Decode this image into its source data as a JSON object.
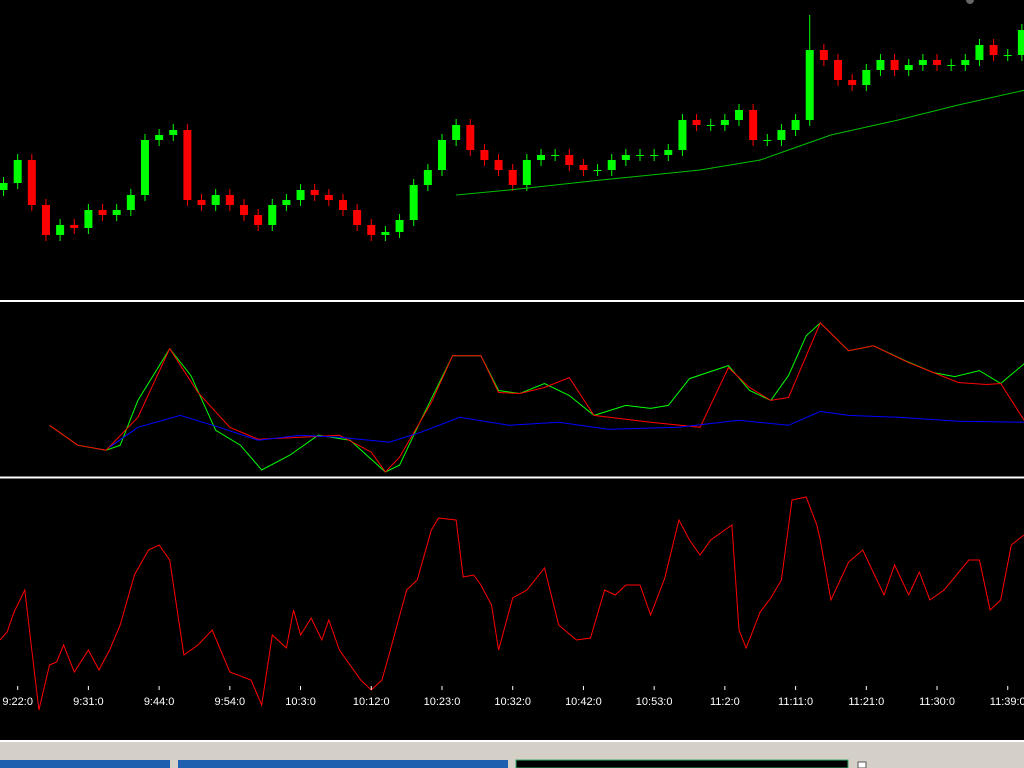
{
  "chart_data": [
    {
      "type": "candlestick",
      "xlim": [
        -0.5,
        144.3
      ],
      "ylim": [
        0,
        300
      ],
      "up_color": "#00ff00",
      "down_color": "#ff0000",
      "x": [
        0,
        2,
        4,
        6,
        8,
        10,
        12,
        14,
        16,
        18,
        20,
        22,
        24,
        26,
        28,
        30,
        32,
        34,
        36,
        38,
        40,
        42,
        44,
        46,
        48,
        50,
        52,
        54,
        56,
        58,
        60,
        62,
        64,
        66,
        68,
        70,
        72,
        74,
        76,
        78,
        80,
        82,
        84,
        86,
        88,
        90,
        92,
        94,
        96,
        98,
        100,
        102,
        104,
        106,
        108,
        110,
        112,
        114,
        116,
        118,
        120,
        122,
        124,
        126,
        128,
        130,
        132,
        134,
        136,
        138,
        140,
        142,
        144
      ],
      "open": [
        110,
        117,
        140,
        95,
        65,
        75,
        72,
        90,
        85,
        90,
        105,
        160,
        165,
        170,
        100,
        95,
        105,
        95,
        85,
        75,
        95,
        100,
        110,
        105,
        100,
        90,
        75,
        65,
        68,
        80,
        115,
        130,
        160,
        175,
        150,
        140,
        130,
        115,
        140,
        145,
        145,
        135,
        130,
        130,
        140,
        145,
        145,
        145,
        150,
        180,
        175,
        175,
        180,
        190,
        160,
        160,
        170,
        180,
        250,
        240,
        220,
        215,
        230,
        240,
        230,
        235,
        240,
        235,
        235,
        240,
        255,
        245,
        245
      ],
      "high": [
        123,
        146,
        146,
        101,
        81,
        81,
        96,
        96,
        96,
        111,
        166,
        171,
        176,
        176,
        106,
        111,
        111,
        101,
        91,
        101,
        106,
        116,
        116,
        111,
        106,
        96,
        81,
        74,
        86,
        121,
        136,
        166,
        181,
        181,
        156,
        146,
        136,
        146,
        151,
        151,
        151,
        141,
        136,
        146,
        151,
        151,
        151,
        156,
        186,
        186,
        181,
        186,
        196,
        196,
        166,
        176,
        186,
        285,
        256,
        246,
        226,
        236,
        246,
        246,
        241,
        246,
        246,
        241,
        246,
        261,
        261,
        251,
        276
      ],
      "low": [
        104,
        111,
        89,
        59,
        59,
        66,
        66,
        79,
        79,
        84,
        99,
        154,
        159,
        94,
        89,
        89,
        89,
        79,
        69,
        69,
        89,
        94,
        99,
        94,
        84,
        69,
        59,
        59,
        62,
        74,
        109,
        124,
        154,
        144,
        134,
        124,
        109,
        109,
        134,
        139,
        129,
        124,
        124,
        124,
        134,
        139,
        139,
        139,
        144,
        169,
        169,
        169,
        174,
        154,
        154,
        154,
        164,
        174,
        234,
        214,
        209,
        209,
        224,
        224,
        224,
        229,
        229,
        229,
        229,
        234,
        239,
        239,
        239
      ],
      "close": [
        117,
        140,
        95,
        65,
        75,
        72,
        90,
        85,
        90,
        105,
        160,
        165,
        170,
        100,
        95,
        105,
        95,
        85,
        75,
        95,
        100,
        110,
        105,
        100,
        90,
        75,
        65,
        68,
        80,
        115,
        130,
        160,
        175,
        150,
        140,
        130,
        115,
        140,
        145,
        145,
        135,
        130,
        130,
        140,
        145,
        145,
        145,
        150,
        180,
        175,
        175,
        180,
        190,
        160,
        160,
        170,
        180,
        250,
        240,
        220,
        215,
        230,
        240,
        230,
        235,
        240,
        235,
        235,
        240,
        255,
        245,
        245,
        270
      ],
      "series": [
        {
          "color": "#00c000",
          "x": [
            64,
            71.5,
            84.5,
            98.5,
            107,
            111,
            117,
            126.5,
            135,
            144.5
          ],
          "values": [
            105,
            110,
            120,
            130,
            140,
            150,
            165,
            180,
            195,
            210
          ]
        }
      ]
    },
    {
      "type": "line",
      "xlim": [
        -0.5,
        144.3
      ],
      "ylim": [
        0,
        175
      ],
      "series": [
        {
          "color": "#00ff00",
          "x": [
            6.5,
            10.5,
            14.5,
            16.5,
            19,
            23.5,
            26.5,
            30,
            33.5,
            36.5,
            40.5,
            44.5,
            49,
            54,
            56,
            59,
            63.5,
            67.5,
            70,
            73,
            76.5,
            80,
            83.5,
            88,
            91.5,
            94,
            97,
            102.5,
            105.5,
            108.5,
            111,
            113.5,
            115.5,
            119.5,
            123,
            127.5,
            131.5,
            134.5,
            138,
            141,
            144.5
          ],
          "values": [
            52,
            32,
            27,
            32,
            77,
            129,
            102,
            47,
            32,
            7,
            22,
            42,
            37,
            5,
            12,
            57,
            122,
            122,
            87,
            84,
            94,
            82,
            62,
            72,
            69,
            72,
            99,
            112,
            87,
            77,
            102,
            142,
            155,
            127,
            132,
            117,
            105,
            101,
            107,
            94,
            115
          ]
        },
        {
          "color": "#ff0000",
          "x": [
            6.5,
            10.5,
            14.5,
            19,
            23.5,
            27.5,
            32,
            36,
            42,
            47.5,
            52,
            54,
            56,
            60.5,
            63.5,
            67.5,
            70,
            73,
            76.5,
            80,
            83.5,
            91.5,
            98.5,
            102.5,
            105.5,
            108.5,
            111,
            115.5,
            119.5,
            123,
            128,
            131.5,
            135,
            139,
            141,
            144.5
          ],
          "values": [
            52,
            32,
            27,
            60,
            129,
            85,
            50,
            38,
            40,
            42,
            25,
            5,
            20,
            75,
            122,
            122,
            85,
            84,
            90,
            100,
            62,
            55,
            50,
            110,
            90,
            77,
            80,
            155,
            127,
            132,
            115,
            105,
            95,
            93,
            94,
            55
          ]
        },
        {
          "color": "#0000ff",
          "x": [
            15,
            19,
            25,
            30.5,
            36,
            42,
            47.5,
            54.5,
            59,
            64.5,
            71.5,
            78.5,
            85.5,
            95.5,
            104,
            111,
            115.5,
            119.5,
            126.5,
            135,
            144.5
          ],
          "values": [
            30,
            50,
            62,
            50,
            37,
            42,
            40,
            35,
            45,
            60,
            52,
            55,
            48,
            50,
            57,
            52,
            66,
            62,
            60,
            56,
            55
          ]
        }
      ]
    },
    {
      "type": "line",
      "xlim": [
        -0.5,
        144.3
      ],
      "ylim": [
        0,
        206
      ],
      "xticks": [
        {
          "value": 2,
          "label": "9:22:0"
        },
        {
          "value": 12,
          "label": "9:31:0"
        },
        {
          "value": 22,
          "label": "9:44:0"
        },
        {
          "value": 32,
          "label": "9:54:0"
        },
        {
          "value": 42,
          "label": "10:3:0"
        },
        {
          "value": 52,
          "label": "10:12:0"
        },
        {
          "value": 62,
          "label": "10:23:0"
        },
        {
          "value": 72,
          "label": "10:32:0"
        },
        {
          "value": 82,
          "label": "10:42:0"
        },
        {
          "value": 92,
          "label": "10:53:0"
        },
        {
          "value": 102,
          "label": "11:2:0"
        },
        {
          "value": 112,
          "label": "11:11:0"
        },
        {
          "value": 122,
          "label": "11:21:0"
        },
        {
          "value": 132,
          "label": "11:30:0"
        },
        {
          "value": 142,
          "label": "11:39:0"
        }
      ],
      "series": [
        {
          "color": "#ff0000",
          "x": [
            -0.5,
            0.5,
            1.5,
            3,
            4,
            5,
            6.5,
            7.5,
            8.5,
            10,
            12,
            13.5,
            15,
            16.5,
            18.5,
            20.5,
            22,
            23.5,
            25.5,
            27.5,
            29.5,
            32,
            35,
            36.5,
            38,
            40,
            41,
            42,
            43.5,
            45,
            46,
            47.5,
            50.5,
            52,
            53.5,
            54.5,
            57,
            58.5,
            60.5,
            61.5,
            64,
            65,
            66.5,
            67.5,
            69,
            70,
            72,
            74,
            76.5,
            78.5,
            81,
            83,
            85,
            86.5,
            88,
            90,
            91.5,
            93.5,
            95.5,
            97,
            98.5,
            100,
            103,
            104,
            105,
            107,
            108.5,
            110,
            111.5,
            113.5,
            115,
            115.5,
            117,
            119.5,
            121.5,
            122.5,
            124.5,
            126,
            128,
            129.5,
            131,
            133,
            136.5,
            138,
            139.5,
            141,
            142.5,
            144.3
          ],
          "values": [
            45,
            53,
            73,
            95,
            35,
            -25,
            20,
            23,
            40,
            13,
            35,
            15,
            35,
            60,
            110,
            135,
            140,
            125,
            30,
            40,
            55,
            13,
            5,
            -20,
            50,
            37,
            75,
            50,
            67,
            45,
            65,
            35,
            5,
            -5,
            5,
            30,
            95,
            105,
            155,
            167,
            165,
            108,
            110,
            100,
            80,
            35,
            87,
            95,
            117,
            60,
            45,
            47,
            95,
            90,
            100,
            100,
            70,
            107,
            165,
            145,
            130,
            145,
            160,
            55,
            37,
            73,
            87,
            105,
            185,
            188,
            160,
            145,
            85,
            123,
            135,
            120,
            90,
            120,
            90,
            113,
            85,
            95,
            125,
            125,
            75,
            85,
            140,
            150
          ]
        }
      ]
    }
  ]
}
